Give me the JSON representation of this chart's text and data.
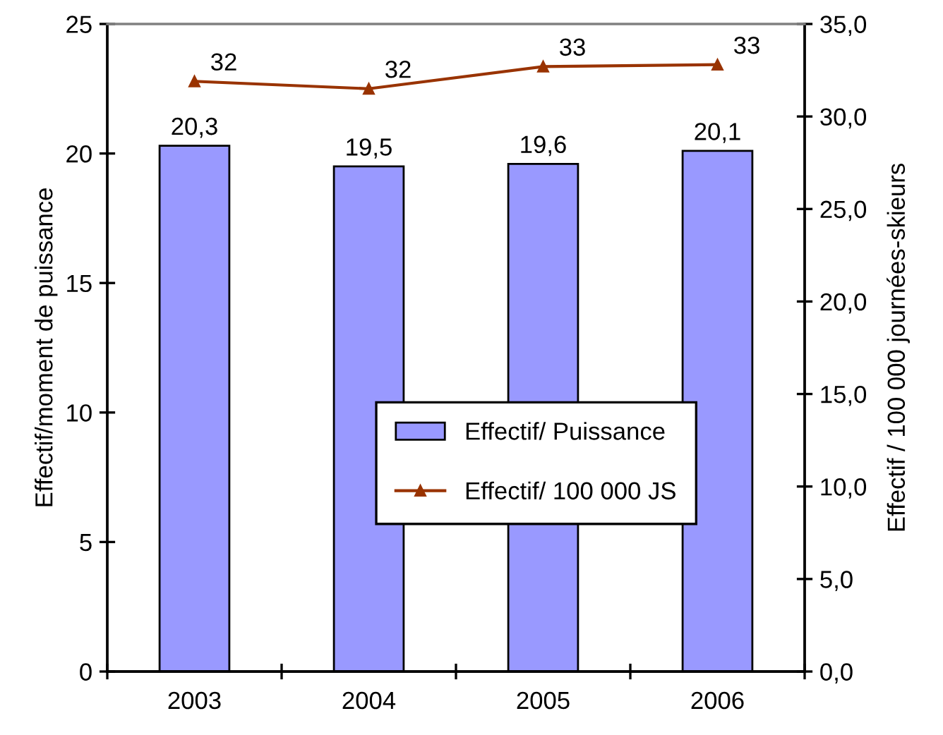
{
  "chart_data": {
    "type": "bar",
    "categories": [
      "2003",
      "2004",
      "2005",
      "2006"
    ],
    "ylabel": "Effectif/moment de puissance",
    "y2label": "Effectif / 100 000 journées-skieurs",
    "ylim": [
      0,
      25
    ],
    "yticks": [
      0,
      5,
      10,
      15,
      20,
      25
    ],
    "y2lim": [
      0,
      35
    ],
    "y2ticks": [
      {
        "value": 0,
        "label": "0,0"
      },
      {
        "value": 5,
        "label": "5,0"
      },
      {
        "value": 10,
        "label": "10,0"
      },
      {
        "value": 15,
        "label": "15,0"
      },
      {
        "value": 20,
        "label": "20,0"
      },
      {
        "value": 25,
        "label": "25,0"
      },
      {
        "value": 30,
        "label": "30,0"
      },
      {
        "value": 35,
        "label": "35,0"
      }
    ],
    "series": [
      {
        "name": "Effectif/ Puissance",
        "color": "#9999ff",
        "values": [
          20.3,
          19.5,
          19.6,
          20.1
        ],
        "value_labels": [
          "20,3",
          "19,5",
          "19,6",
          "20,1"
        ]
      },
      {
        "name": "Effectif/ 100 000 JS",
        "type": "line",
        "axis": "y2",
        "color": "#993300",
        "marker": "triangle",
        "line_style": "solid",
        "values": [
          31.9,
          31.5,
          32.7,
          32.8
        ],
        "value_labels": [
          "32",
          "32",
          "33",
          "33"
        ]
      }
    ],
    "grid": false,
    "legend": "lower right"
  }
}
